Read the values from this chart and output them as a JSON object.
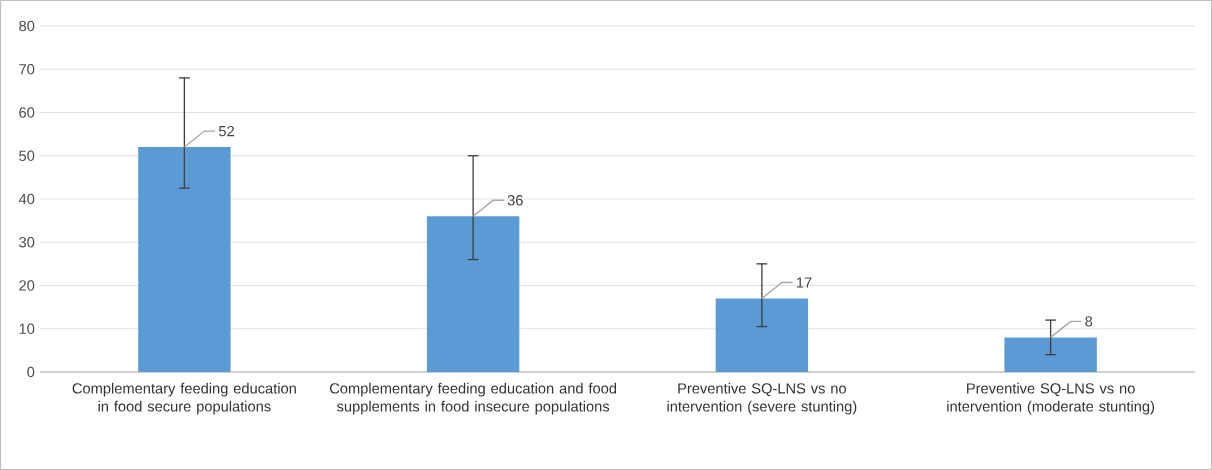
{
  "chart_data": {
    "type": "bar",
    "categories": [
      "Complementary feeding education in food secure populations",
      "Complementary feeding education and food supplements in food insecure populations",
      "Preventive SQ-LNS vs no intervention (severe stunting)",
      "Preventive SQ-LNS vs no intervention (moderate stunting)"
    ],
    "values": [
      52,
      36,
      17,
      8
    ],
    "errors": [
      [
        42.5,
        68
      ],
      [
        26,
        50
      ],
      [
        10.5,
        25
      ],
      [
        4,
        12
      ]
    ],
    "color": "#5b9bd5",
    "ylim": [
      0,
      80
    ],
    "yticks": [
      0,
      10,
      20,
      30,
      40,
      50,
      60,
      70,
      80
    ],
    "grid": "y",
    "data_labels": true
  }
}
